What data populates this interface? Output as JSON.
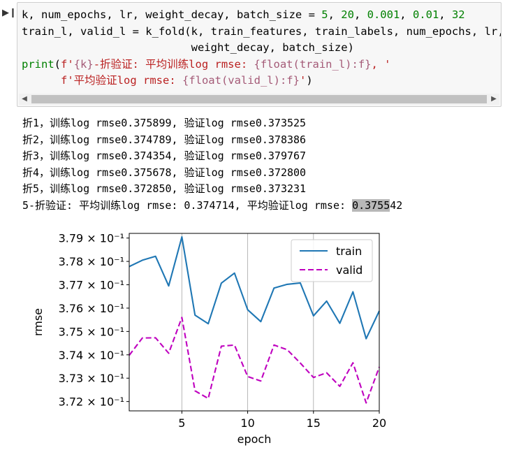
{
  "run_icon": "run-cell-icon",
  "code_lines": [
    [
      [
        "t",
        "k, num_epochs, lr, weight_decay, batch_size = "
      ],
      [
        "num",
        "5"
      ],
      [
        "t",
        ", "
      ],
      [
        "num",
        "20"
      ],
      [
        "t",
        ", "
      ],
      [
        "num",
        "0.001"
      ],
      [
        "t",
        ", "
      ],
      [
        "num",
        "0.01"
      ],
      [
        "t",
        ", "
      ],
      [
        "num",
        "32"
      ]
    ],
    [
      [
        "t",
        "train_l, valid_l = k_fold(k, train_features, train_labels, num_epochs, lr,"
      ]
    ],
    [
      [
        "t",
        "                          weight_decay, batch_size)"
      ]
    ],
    [
      [
        "kw",
        "print"
      ],
      [
        "t",
        "("
      ],
      [
        "str",
        "f'"
      ],
      [
        "interp",
        "{k}"
      ],
      [
        "str",
        "-折验证: 平均训练log rmse: "
      ],
      [
        "interp",
        "{float(train_l):f}"
      ],
      [
        "str",
        ", '"
      ]
    ],
    [
      [
        "t",
        "      "
      ],
      [
        "str",
        "f'平均验证log rmse: "
      ],
      [
        "interp",
        "{float(valid_l):f}"
      ],
      [
        "str",
        "'"
      ],
      [
        "t",
        ")"
      ]
    ]
  ],
  "output": {
    "lines": [
      "折1，训练log rmse0.375899, 验证log rmse0.373525",
      "折2，训练log rmse0.374789, 验证log rmse0.378386",
      "折3，训练log rmse0.374354, 验证log rmse0.379767",
      "折4，训练log rmse0.375678, 验证log rmse0.372800",
      "折5，训练log rmse0.372850, 验证log rmse0.373231"
    ],
    "summary_prefix": "5-折验证: 平均训练log rmse: 0.374714, 平均验证log rmse: ",
    "summary_selected": "0.3755",
    "summary_rest": "42"
  },
  "chart_data": {
    "type": "line",
    "xlabel": "epoch",
    "ylabel": "rmse",
    "xlim": [
      1,
      20
    ],
    "ylim": [
      3.716,
      3.792
    ],
    "xticks": [
      5,
      10,
      15,
      20
    ],
    "yticks": [
      3.72,
      3.73,
      3.74,
      3.75,
      3.76,
      3.77,
      3.78,
      3.79
    ],
    "ytick_labels": [
      "3.72 × 10⁻¹",
      "3.73 × 10⁻¹",
      "3.74 × 10⁻¹",
      "3.75 × 10⁻¹",
      "3.76 × 10⁻¹",
      "3.77 × 10⁻¹",
      "3.78 × 10⁻¹",
      "3.79 × 10⁻¹"
    ],
    "grid": "x",
    "legend_position": "top-right",
    "x": [
      1,
      2,
      3,
      4,
      5,
      6,
      7,
      8,
      9,
      10,
      11,
      12,
      13,
      14,
      15,
      16,
      17,
      18,
      19,
      20
    ],
    "series": [
      {
        "name": "train",
        "color": "#1f77b4",
        "style": "solid",
        "values": [
          3.7778,
          3.7805,
          3.7822,
          3.7695,
          3.7905,
          3.757,
          3.7533,
          3.7707,
          3.775,
          3.7593,
          3.7542,
          3.7686,
          3.7702,
          3.7708,
          3.7567,
          3.763,
          3.7535,
          3.767,
          3.7469,
          3.7588
        ]
      },
      {
        "name": "valid",
        "color": "#bf00bf",
        "style": "dashed",
        "values": [
          3.7398,
          3.7472,
          3.7473,
          3.7407,
          3.756,
          3.7246,
          3.7213,
          3.7437,
          3.7442,
          3.7307,
          3.7288,
          3.7442,
          3.7422,
          3.7365,
          3.7303,
          3.7323,
          3.7265,
          3.7366,
          3.7194,
          3.7348
        ]
      }
    ]
  }
}
